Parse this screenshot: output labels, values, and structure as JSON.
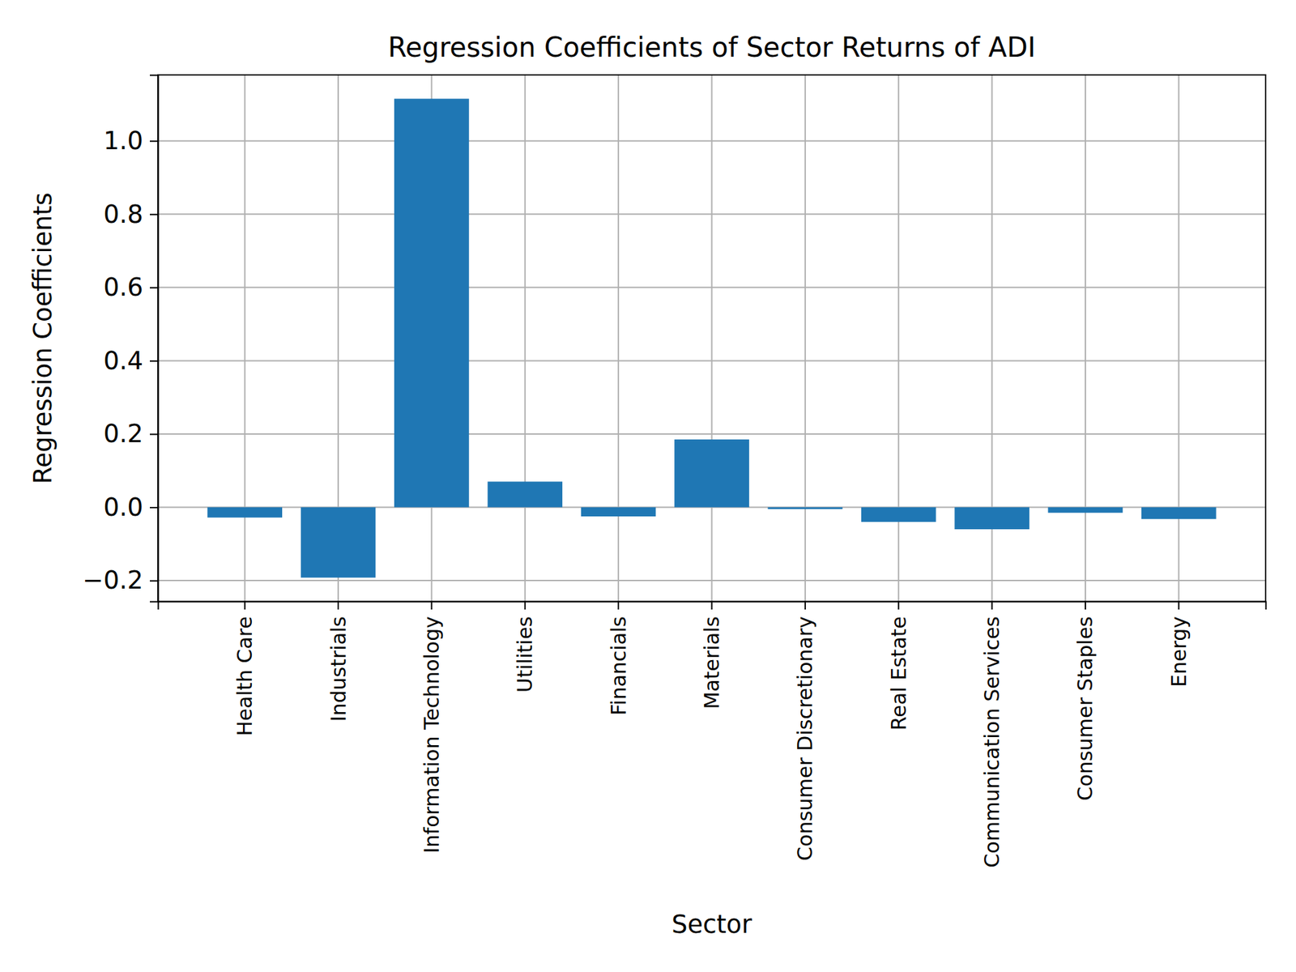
{
  "chart_data": {
    "type": "bar",
    "title": "Regression Coefficients of Sector Returns of ADI",
    "x_label": "Sector",
    "y_label": "Regression Coefficients",
    "categories": [
      "Health Care",
      "Industrials",
      "Information Technology",
      "Utilities",
      "Financials",
      "Materials",
      "Consumer Discretionary",
      "Real Estate",
      "Communication Services",
      "Consumer Staples",
      "Energy"
    ],
    "values": [
      -0.028,
      -0.192,
      1.115,
      0.07,
      -0.025,
      0.185,
      -0.005,
      -0.04,
      -0.06,
      -0.015,
      -0.032
    ],
    "color": "#1f77b4",
    "ylim": [
      -0.257,
      1.18
    ],
    "yticks": [
      {
        "value": -0.2,
        "label": "−0.2"
      },
      {
        "value": 0.0,
        "label": "0.0"
      },
      {
        "value": 0.2,
        "label": "0.2"
      },
      {
        "value": 0.4,
        "label": "0.4"
      },
      {
        "value": 0.6,
        "label": "0.6"
      },
      {
        "value": 0.8,
        "label": "0.8"
      },
      {
        "value": 1.0,
        "label": "1.0"
      }
    ],
    "grid": true
  }
}
